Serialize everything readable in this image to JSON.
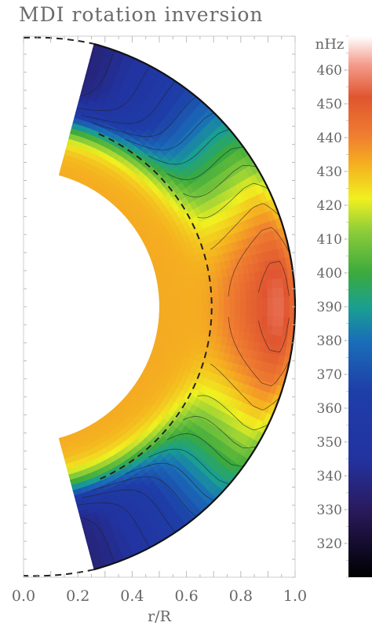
{
  "chart_data": {
    "type": "heatmap",
    "title": "MDI rotation inversion",
    "xlabel": "r/R",
    "x_ticks": [
      "0.0",
      "0.2",
      "0.4",
      "0.6",
      "0.8",
      "1.0"
    ],
    "xlim": [
      0.0,
      1.0
    ],
    "colorbar": {
      "unit_label": "nHz",
      "ticks": [
        460,
        450,
        440,
        430,
        420,
        410,
        400,
        390,
        380,
        370,
        360,
        350,
        340,
        330,
        320
      ],
      "range": [
        310,
        470
      ],
      "stops": [
        {
          "value": 310,
          "color": "#000000"
        },
        {
          "value": 330,
          "color": "#2a1a5e"
        },
        {
          "value": 345,
          "color": "#2233a0"
        },
        {
          "value": 365,
          "color": "#1e3ea8"
        },
        {
          "value": 380,
          "color": "#1a6fb8"
        },
        {
          "value": 390,
          "color": "#1aa090"
        },
        {
          "value": 400,
          "color": "#3caa3c"
        },
        {
          "value": 412,
          "color": "#8acc3a"
        },
        {
          "value": 422,
          "color": "#f0f020"
        },
        {
          "value": 432,
          "color": "#f5b020"
        },
        {
          "value": 440,
          "color": "#f08030"
        },
        {
          "value": 452,
          "color": "#e05530"
        },
        {
          "value": 462,
          "color": "#f5a090"
        },
        {
          "value": 470,
          "color": "#ffffff"
        }
      ]
    },
    "tachocline_radius": 0.693,
    "inner_radius": 0.5,
    "latitude_extent_deg": 75,
    "rotation_profile": {
      "equator_surface": 455,
      "equator_interior": 432,
      "pole_surface": 330,
      "mid_latitude_surface": 405,
      "radiative_interior": 433
    }
  }
}
